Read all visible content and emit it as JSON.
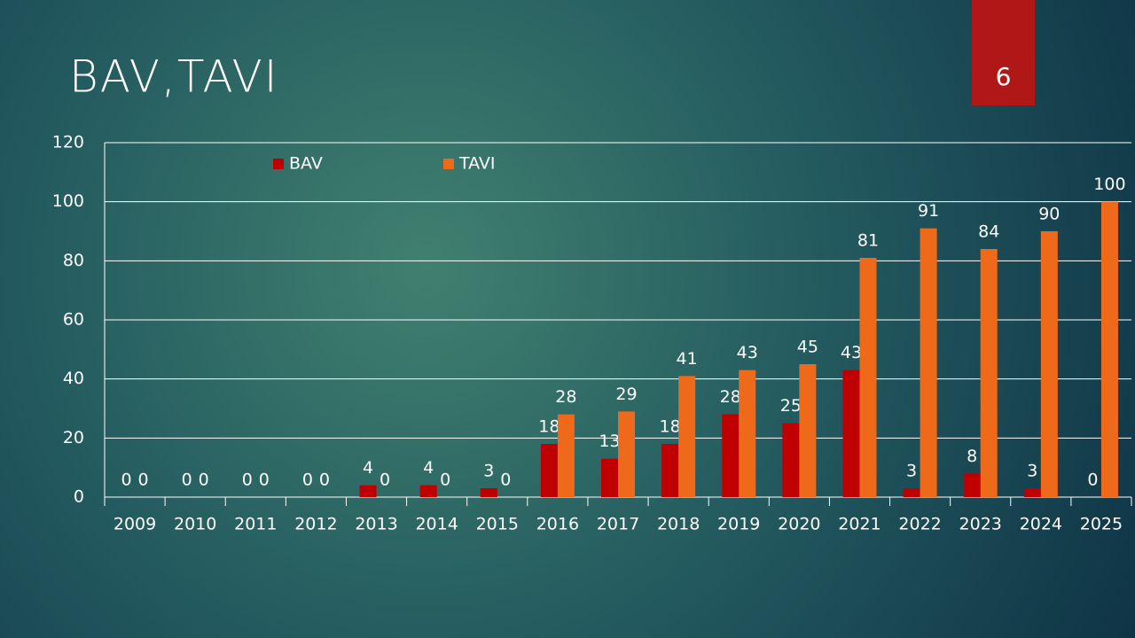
{
  "slide_number": "6",
  "chart_data": {
    "type": "bar",
    "title": "BAV,TAVI",
    "categories": [
      "2009",
      "2010",
      "2011",
      "2012",
      "2013",
      "2014",
      "2015",
      "2016",
      "2017",
      "2018",
      "2019",
      "2020",
      "2021",
      "2022",
      "2023",
      "2024",
      "2025"
    ],
    "series": [
      {
        "name": "BAV",
        "color": "#c00000",
        "values": [
          0,
          0,
          0,
          0,
          4,
          4,
          3,
          18,
          13,
          18,
          28,
          25,
          43,
          3,
          8,
          3,
          0
        ]
      },
      {
        "name": "TAVI",
        "color": "#ee6a1a",
        "values": [
          0,
          0,
          0,
          0,
          0,
          0,
          0,
          28,
          29,
          41,
          43,
          45,
          81,
          91,
          84,
          90,
          100
        ]
      }
    ],
    "ylim": [
      0,
      120
    ],
    "yticks": [
      0,
      20,
      40,
      60,
      80,
      100,
      120
    ],
    "grid": true,
    "legend": "top"
  }
}
